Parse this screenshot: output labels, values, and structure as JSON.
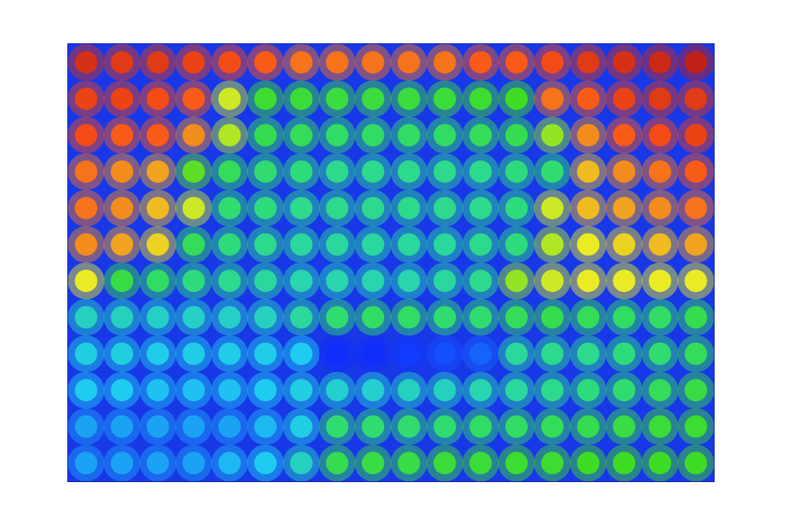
{
  "chart_data": {
    "type": "heatmap",
    "cells": [
      [
        92,
        90,
        90,
        88,
        86,
        84,
        82,
        82,
        82,
        82,
        82,
        84,
        84,
        86,
        90,
        92,
        94,
        96
      ],
      [
        88,
        88,
        86,
        84,
        70,
        58,
        56,
        55,
        55,
        55,
        56,
        58,
        60,
        82,
        84,
        88,
        90,
        90
      ],
      [
        86,
        84,
        84,
        80,
        68,
        52,
        50,
        48,
        48,
        48,
        48,
        50,
        52,
        66,
        80,
        84,
        86,
        88
      ],
      [
        82,
        80,
        78,
        62,
        50,
        46,
        44,
        42,
        42,
        42,
        42,
        42,
        44,
        46,
        76,
        80,
        82,
        84
      ],
      [
        82,
        80,
        76,
        70,
        46,
        44,
        42,
        42,
        42,
        42,
        42,
        42,
        44,
        70,
        76,
        78,
        80,
        82
      ],
      [
        80,
        78,
        74,
        50,
        44,
        42,
        40,
        40,
        40,
        40,
        40,
        42,
        44,
        68,
        72,
        74,
        76,
        78
      ],
      [
        72,
        54,
        48,
        44,
        42,
        40,
        38,
        38,
        38,
        38,
        40,
        42,
        66,
        70,
        72,
        72,
        72,
        72
      ],
      [
        36,
        36,
        35,
        35,
        35,
        36,
        40,
        46,
        48,
        48,
        46,
        46,
        50,
        52,
        50,
        48,
        48,
        52
      ],
      [
        32,
        32,
        31,
        31,
        31,
        31,
        30,
        14,
        14,
        16,
        18,
        20,
        40,
        42,
        42,
        44,
        46,
        50
      ],
      [
        30,
        30,
        29,
        29,
        29,
        30,
        32,
        34,
        34,
        36,
        36,
        38,
        40,
        42,
        44,
        46,
        50,
        54
      ],
      [
        26,
        26,
        26,
        26,
        26,
        28,
        32,
        46,
        46,
        46,
        46,
        48,
        48,
        50,
        52,
        54,
        56,
        58
      ],
      [
        26,
        26,
        26,
        26,
        28,
        30,
        36,
        52,
        54,
        54,
        56,
        56,
        58,
        58,
        60,
        60,
        60,
        60
      ]
    ],
    "zlim": [
      0,
      100
    ],
    "xlim": [
      -0.5,
      17.5
    ],
    "ylim": [
      11.5,
      -0.5
    ],
    "tick_labels": false,
    "grid": false
  }
}
